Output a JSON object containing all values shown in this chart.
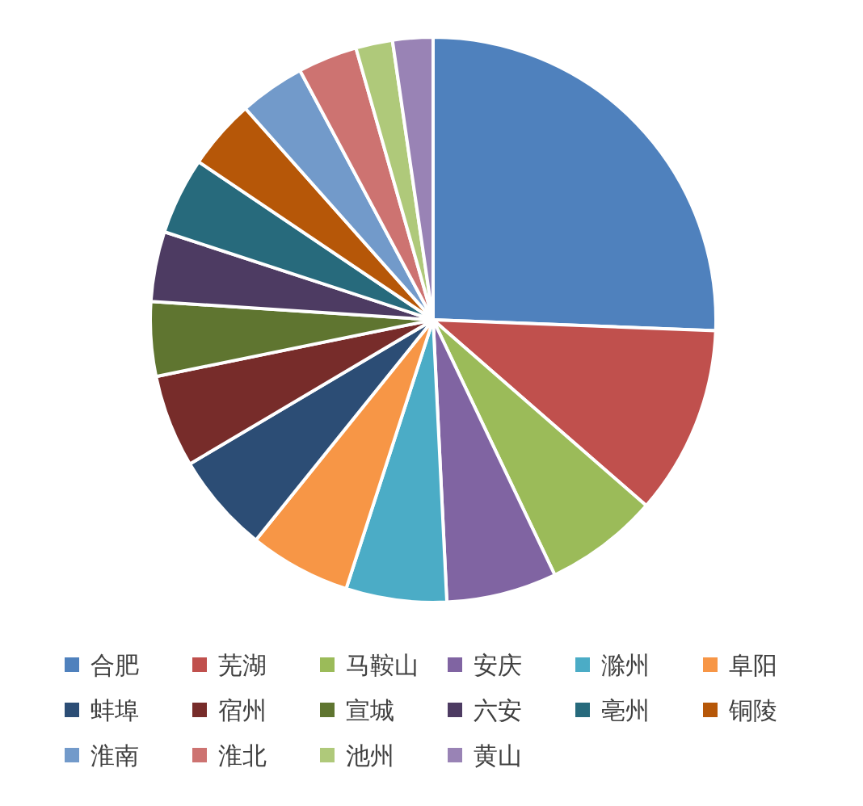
{
  "chart_data": {
    "type": "pie",
    "categories": [
      "合肥",
      "芜湖",
      "马鞍山",
      "安庆",
      "滁州",
      "阜阳",
      "蚌埠",
      "宿州",
      "宣城",
      "六安",
      "亳州",
      "铜陵",
      "淮南",
      "淮北",
      "池州",
      "黄山"
    ],
    "values": [
      25.6,
      10.8,
      6.5,
      6.3,
      5.75,
      5.8,
      5.7,
      5.3,
      4.25,
      4.0,
      4.4,
      4.0,
      3.75,
      3.4,
      2.1,
      2.3
    ],
    "colors": [
      "#4f81bd",
      "#c0504d",
      "#9bbb59",
      "#8064a2",
      "#4bacc6",
      "#f79646",
      "#2c4d75",
      "#772c2a",
      "#5f7530",
      "#4d3b62",
      "#276a7c",
      "#b65708",
      "#729aca",
      "#cd7371",
      "#afc97a",
      "#9983b5"
    ],
    "legend": "bottom"
  }
}
